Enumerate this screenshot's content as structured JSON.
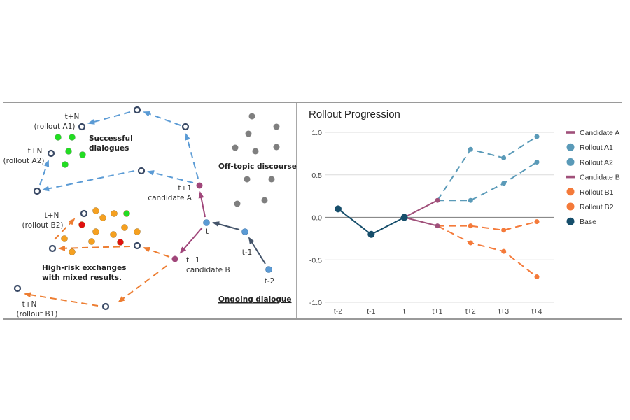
{
  "diagram": {
    "labels": {
      "rollout_a1_tn": "t+N",
      "rollout_a1": "(rollout A1)",
      "rollout_a2_tn": "t+N",
      "rollout_a2": "(rollout A2)",
      "successful_1": "Successful",
      "successful_2": "dialogues",
      "off_topic": "Off-topic discourse.",
      "cand_a_t": "t+1",
      "cand_a": "candidate A",
      "cand_b_t": "t+1",
      "cand_b": "candidate B",
      "t": "t",
      "t_minus_1": "t-1",
      "t_minus_2": "t-2",
      "ongoing": "Ongoing dialogue",
      "rollout_b2_tn": "t+N",
      "rollout_b2": "(rollout B2)",
      "high_risk_1": "High-risk exchanges",
      "high_risk_2": "with mixed results.",
      "rollout_b1_tn": "t+N",
      "rollout_b1": "(rollout B1)"
    },
    "colors": {
      "blue_dash": "#5b9bd5",
      "orange_dash": "#ed7d31",
      "magenta": "#a0467a",
      "navy": "#44546a",
      "green": "#22dd22",
      "orange_dot": "#f5a020",
      "red": "#e01010",
      "gray": "#7f7f7f",
      "blue_node": "#5b9bd5",
      "hollow": "#3a4a66"
    }
  },
  "chart_data": {
    "type": "line",
    "title": "Rollout Progression",
    "categories": [
      "t-2",
      "t-1",
      "t",
      "t+1",
      "t+2",
      "t+3",
      "t+4"
    ],
    "ylim": [
      -1.0,
      1.0
    ],
    "yticks": [
      "1.0",
      "0.5",
      "0.0",
      "-0.5",
      "-1.0"
    ],
    "ytick_values": [
      1.0,
      0.5,
      0.0,
      -0.5,
      -1.0
    ],
    "grid": true,
    "legend_position": "right",
    "series": [
      {
        "name": "Candidate A",
        "color": "#a0507a",
        "style": "solid",
        "marker": "line",
        "x": [
          "t",
          "t+1"
        ],
        "values": [
          0.0,
          0.2
        ]
      },
      {
        "name": "Rollout A1",
        "color": "#5a9ab8",
        "style": "dashed",
        "marker": "circle",
        "x": [
          "t+1",
          "t+2",
          "t+3",
          "t+4"
        ],
        "values": [
          0.2,
          0.8,
          0.7,
          0.95
        ]
      },
      {
        "name": "Rollout A2",
        "color": "#5a9ab8",
        "style": "dashed",
        "marker": "circle",
        "x": [
          "t+1",
          "t+2",
          "t+3",
          "t+4"
        ],
        "values": [
          0.2,
          0.2,
          0.4,
          0.65
        ]
      },
      {
        "name": "Candidate B",
        "color": "#a0507a",
        "style": "solid",
        "marker": "line",
        "x": [
          "t",
          "t+1"
        ],
        "values": [
          0.0,
          -0.1
        ]
      },
      {
        "name": "Rollout B1",
        "color": "#f47a3a",
        "style": "dashed",
        "marker": "circle",
        "x": [
          "t+1",
          "t+2",
          "t+3",
          "t+4"
        ],
        "values": [
          -0.1,
          -0.1,
          -0.15,
          -0.05
        ]
      },
      {
        "name": "Rollout B2",
        "color": "#f47a3a",
        "style": "dashed",
        "marker": "circle",
        "x": [
          "t+1",
          "t+2",
          "t+3",
          "t+4"
        ],
        "values": [
          -0.1,
          -0.3,
          -0.4,
          -0.7
        ]
      },
      {
        "name": "Base",
        "color": "#164e6b",
        "style": "solid",
        "marker": "circle",
        "x": [
          "t-2",
          "t-1",
          "t"
        ],
        "values": [
          0.1,
          -0.2,
          0.0
        ]
      }
    ]
  }
}
